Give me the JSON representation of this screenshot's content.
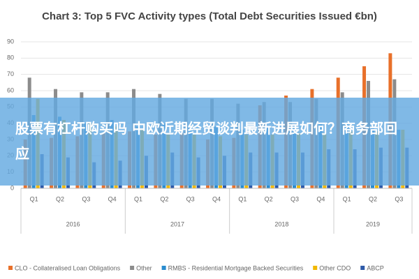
{
  "chart_data": {
    "type": "bar",
    "title": "Chart 3: Top 5 FVC Activity types (Total Debt Securities Issued €bn)",
    "groups": [
      {
        "label": "2016",
        "categories": [
          "Q1",
          "Q2",
          "Q3",
          "Q4"
        ]
      },
      {
        "label": "2017",
        "categories": [
          "Q1",
          "Q2",
          "Q3",
          "Q4"
        ]
      },
      {
        "label": "2018",
        "categories": [
          "Q1",
          "Q2",
          "Q3",
          "Q4"
        ]
      },
      {
        "label": "2019",
        "categories": [
          "Q1",
          "Q2",
          "Q3"
        ]
      }
    ],
    "series": [
      {
        "name": "CLO - Collateralised Loan Obligations",
        "color": "#e8702a",
        "values": [
          30,
          31,
          32,
          34,
          35,
          33,
          34,
          30,
          31,
          51,
          57,
          61,
          68,
          75,
          83
        ]
      },
      {
        "name": "Other",
        "color": "#8c8c8c",
        "values": [
          68,
          61,
          59,
          59,
          61,
          58,
          55,
          55,
          52,
          53,
          53,
          55,
          59,
          66,
          67
        ]
      },
      {
        "name": "RMBS - Residential Mortgage Backed Securities",
        "color": "#2a8ccf",
        "values": [
          45,
          44,
          40,
          42,
          38,
          40,
          38,
          38,
          36,
          37,
          38,
          40,
          40,
          37,
          36
        ]
      },
      {
        "name": "Other CDO",
        "color": "#f2b800",
        "values": [
          55,
          42,
          40,
          38,
          36,
          34,
          33,
          32,
          33,
          33,
          34,
          34,
          35,
          35,
          36
        ]
      },
      {
        "name": "ABCP",
        "color": "#2e5aa8",
        "values": [
          21,
          19,
          16,
          17,
          20,
          22,
          19,
          20,
          22,
          22,
          22,
          24,
          24,
          25,
          25
        ]
      }
    ],
    "ylim": [
      0,
      90
    ],
    "yticks": [
      0,
      10,
      20,
      30,
      40,
      50,
      60,
      70,
      80,
      90
    ],
    "grid": true,
    "legend": "bottom",
    "overlay_text": "股票有杠杆购买吗 中欧近期经贸谈判最新进展如何？商务部回应"
  }
}
